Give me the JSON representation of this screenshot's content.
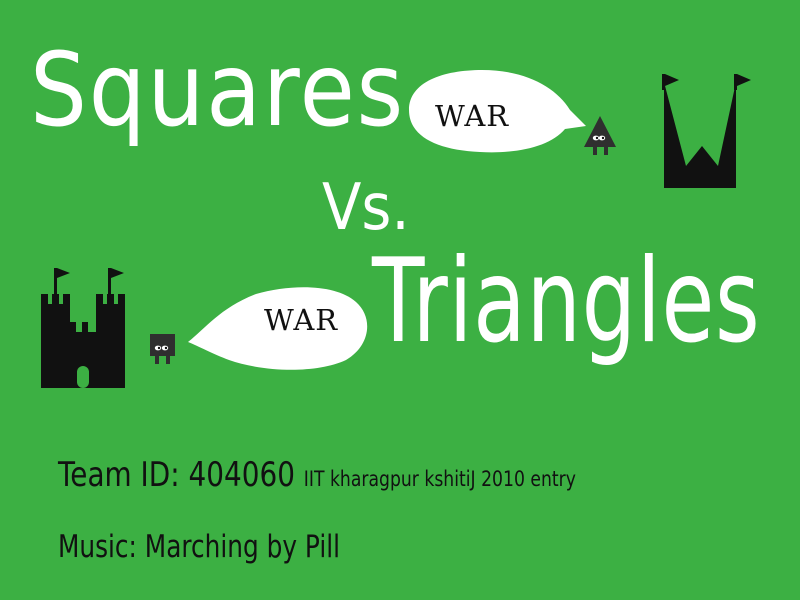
{
  "title": {
    "squares": "Squares",
    "vs": "Vs.",
    "triangles": "Triangles"
  },
  "bubbles": {
    "top": "WAR",
    "bottom": "WAR"
  },
  "credits": {
    "team_id_label": "Team ID:",
    "team_id_value": "404060",
    "entry": "IIT kharagpur kshitiJ 2010 entry",
    "music": "Music: Marching by Pill"
  },
  "icons": {
    "triangle_castle": "castle-w-icon",
    "triangle_soldier": "triangle-soldier-icon",
    "square_castle": "castle-tower-icon",
    "square_soldier": "square-soldier-icon"
  },
  "colors": {
    "background": "#3cb043",
    "title": "#ffffff",
    "ink": "#111111",
    "bubble": "#ffffff",
    "sprite": "#2f2f2f"
  }
}
